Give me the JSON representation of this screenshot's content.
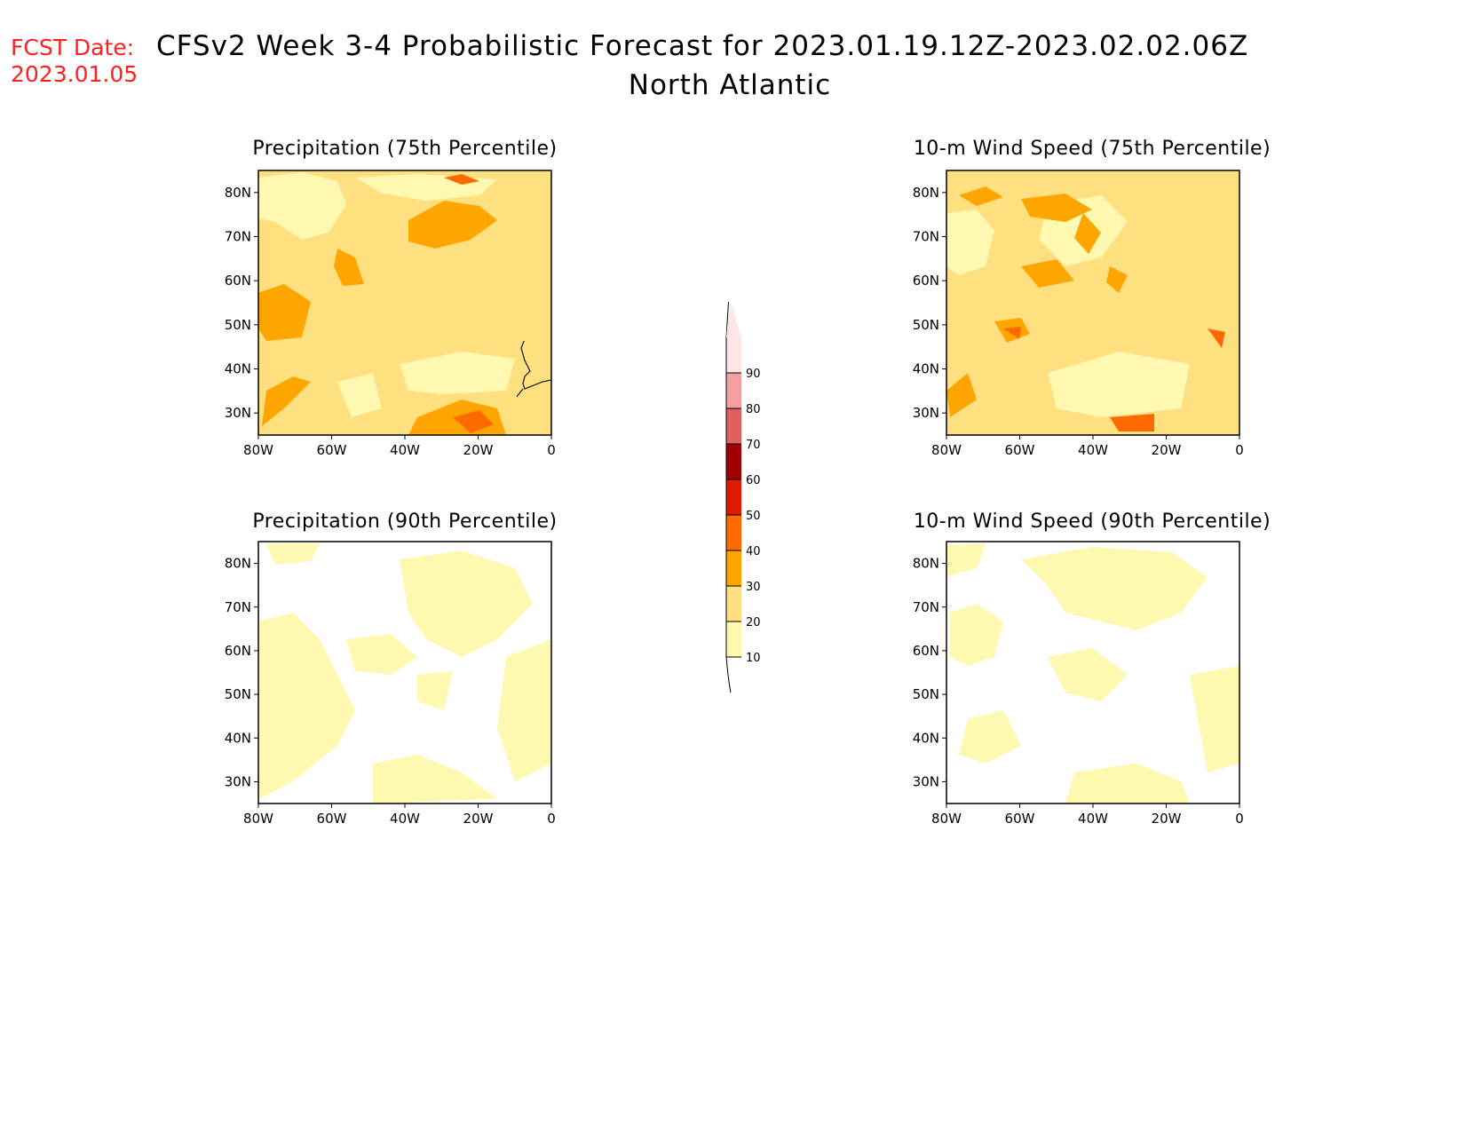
{
  "header": {
    "fcst_label": "FCST Date:",
    "fcst_date": "2023.01.05",
    "title": "CFSv2 Week 3-4 Probabilistic Forecast for 2023.01.19.12Z-2023.02.02.06Z",
    "region": "North Atlantic"
  },
  "panels": [
    {
      "id": "precip75",
      "title": "Precipitation (75th Percentile)",
      "fills": [
        {
          "level": 20,
          "area": "broad"
        },
        {
          "level": 30,
          "area": "central-subtropical-band"
        },
        {
          "level": 40,
          "area": "east-greenland-coast"
        }
      ]
    },
    {
      "id": "wind75",
      "title": "10-m Wind Speed (75th Percentile)",
      "fills": [
        {
          "level": 20,
          "area": "broad"
        },
        {
          "level": 30,
          "area": "scattered"
        },
        {
          "level": 40,
          "area": "nova-scotia"
        }
      ]
    },
    {
      "id": "precip90",
      "title": "Precipitation (90th Percentile)",
      "fills": [
        {
          "level": 10,
          "area": "scattered"
        }
      ]
    },
    {
      "id": "wind90",
      "title": "10-m Wind Speed (90th Percentile)",
      "fills": [
        {
          "level": 10,
          "area": "scattered"
        }
      ]
    }
  ],
  "map_axes": {
    "lat_labels": [
      "80N",
      "70N",
      "60N",
      "50N",
      "40N",
      "30N"
    ],
    "lon_labels": [
      "80W",
      "60W",
      "40W",
      "20W",
      "0"
    ],
    "lat_range": [
      25,
      85
    ],
    "lon_range": [
      -80,
      0
    ]
  },
  "colorbar": {
    "ticks": [
      "90",
      "80",
      "70",
      "60",
      "50",
      "40",
      "30",
      "20",
      "10"
    ],
    "levels": [
      {
        "min": 10,
        "max": 20,
        "color": "#fff8b0"
      },
      {
        "min": 20,
        "max": 30,
        "color": "#ffe080"
      },
      {
        "min": 30,
        "max": 40,
        "color": "#ffa500"
      },
      {
        "min": 40,
        "max": 50,
        "color": "#ff6a00"
      },
      {
        "min": 50,
        "max": 60,
        "color": "#e01a00"
      },
      {
        "min": 60,
        "max": 70,
        "color": "#a00000"
      },
      {
        "min": 70,
        "max": 80,
        "color": "#e06060"
      },
      {
        "min": 80,
        "max": 90,
        "color": "#f5a0a0"
      },
      {
        "min": 90,
        "max": 100,
        "color": "#ffe6e6"
      }
    ]
  },
  "colors": {
    "date_red": "#ff2020",
    "coastline": "#000000"
  }
}
